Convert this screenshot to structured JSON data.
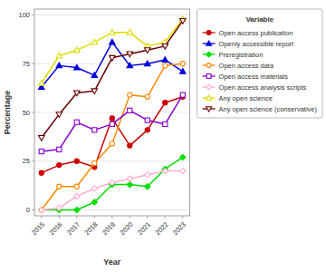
{
  "chart_data": {
    "type": "line",
    "x": [
      2015,
      2016,
      2017,
      2018,
      2019,
      2020,
      2021,
      2022,
      2023
    ],
    "xlabel": "Year",
    "ylabel": "Percentage",
    "xlim": [
      2014.6,
      2023.4
    ],
    "xticks": [
      2015,
      2016,
      2017,
      2018,
      2019,
      2020,
      2021,
      2022,
      2023
    ],
    "ylim": [
      -3,
      103
    ],
    "yticks": [
      0,
      25,
      50,
      75,
      100
    ],
    "grid": true,
    "legend": "right",
    "legend_title": "Variable",
    "series": [
      {
        "name": "Open access publication",
        "color": "#cc0000",
        "marker": "circle",
        "values": [
          19,
          23,
          25,
          22,
          47,
          33,
          41,
          55,
          58
        ]
      },
      {
        "name": "Openly accessible report",
        "color": "#0000dd",
        "marker": "triangle-up",
        "values": [
          63,
          74,
          73,
          69,
          86,
          74,
          75,
          77,
          71
        ]
      },
      {
        "name": "Preregistration",
        "color": "#00dd00",
        "marker": "diamond",
        "values": [
          0,
          0,
          0,
          4,
          13,
          13,
          12,
          21,
          27
        ]
      },
      {
        "name": "Open access data",
        "color": "#ff8800",
        "marker": "circle-open",
        "values": [
          0,
          12,
          12,
          24,
          34,
          59,
          58,
          74,
          75
        ]
      },
      {
        "name": "Open access materials",
        "color": "#8800cc",
        "marker": "square-open",
        "values": [
          30,
          31,
          45,
          41,
          44,
          51,
          46,
          44,
          59
        ]
      },
      {
        "name": "Open access analysis scripts",
        "color": "#ffaacc",
        "marker": "diamond-open",
        "values": [
          0,
          1,
          7,
          11,
          14,
          16,
          18,
          20,
          20
        ]
      },
      {
        "name": "Any open science",
        "color": "#dddd00",
        "marker": "triangle-up-open",
        "values": [
          65,
          79,
          82,
          86,
          91,
          91,
          84,
          86,
          98
        ]
      },
      {
        "name": "Any open science (conservative)",
        "color": "#660000",
        "marker": "triangle-down-open",
        "values": [
          37,
          49,
          60,
          61,
          78,
          80,
          82,
          84,
          97
        ]
      }
    ]
  }
}
